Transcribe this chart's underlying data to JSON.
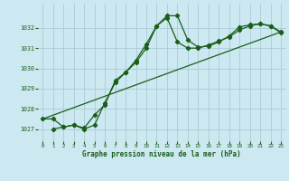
{
  "title": "Graphe pression niveau de la mer (hPa)",
  "bg_color": "#cce8f0",
  "grid_color": "#aaccd8",
  "line_color": "#1a5e1a",
  "xlim": [
    -0.5,
    23.5
  ],
  "ylim": [
    1026.4,
    1033.2
  ],
  "yticks": [
    1027,
    1028,
    1029,
    1030,
    1031,
    1032
  ],
  "xticks": [
    0,
    1,
    2,
    3,
    4,
    5,
    6,
    7,
    8,
    9,
    10,
    11,
    12,
    13,
    14,
    15,
    16,
    17,
    18,
    19,
    20,
    21,
    22,
    23
  ],
  "series1_x": [
    0,
    1,
    2,
    3,
    4,
    5,
    6,
    7,
    8,
    9,
    10,
    11,
    12,
    13,
    14,
    15,
    16,
    17,
    18,
    19,
    20,
    21,
    22,
    23
  ],
  "series1_y": [
    1027.5,
    1027.5,
    1027.1,
    1027.2,
    1027.0,
    1027.2,
    1028.3,
    1029.3,
    1029.8,
    1030.4,
    1031.2,
    1032.1,
    1032.6,
    1032.6,
    1031.4,
    1031.05,
    1031.1,
    1031.3,
    1031.6,
    1032.05,
    1032.15,
    1032.2,
    1032.1,
    1031.8
  ],
  "series2_x": [
    1,
    2,
    3,
    4,
    5,
    6,
    7,
    8,
    9,
    10,
    11,
    12,
    13,
    14,
    15,
    16,
    17,
    18,
    19,
    20,
    21,
    22,
    23
  ],
  "series2_y": [
    1027.0,
    1027.1,
    1027.2,
    1027.05,
    1027.7,
    1028.2,
    1029.4,
    1029.8,
    1030.3,
    1031.0,
    1032.1,
    1032.5,
    1031.3,
    1031.0,
    1031.0,
    1031.15,
    1031.35,
    1031.55,
    1031.9,
    1032.1,
    1032.2,
    1032.1,
    1031.75
  ],
  "series3_x": [
    0,
    23
  ],
  "series3_y": [
    1027.5,
    1031.8
  ]
}
